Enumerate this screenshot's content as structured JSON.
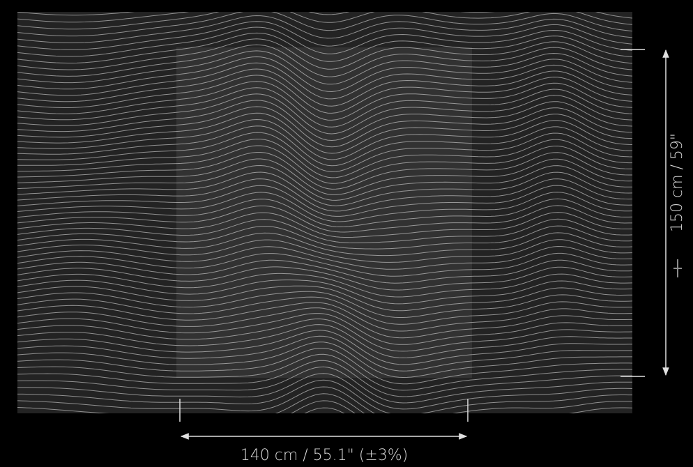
{
  "dimensions": {
    "width_label": "140 cm / 55.1\" (±3%)",
    "height_label": "150 cm / 59\""
  }
}
